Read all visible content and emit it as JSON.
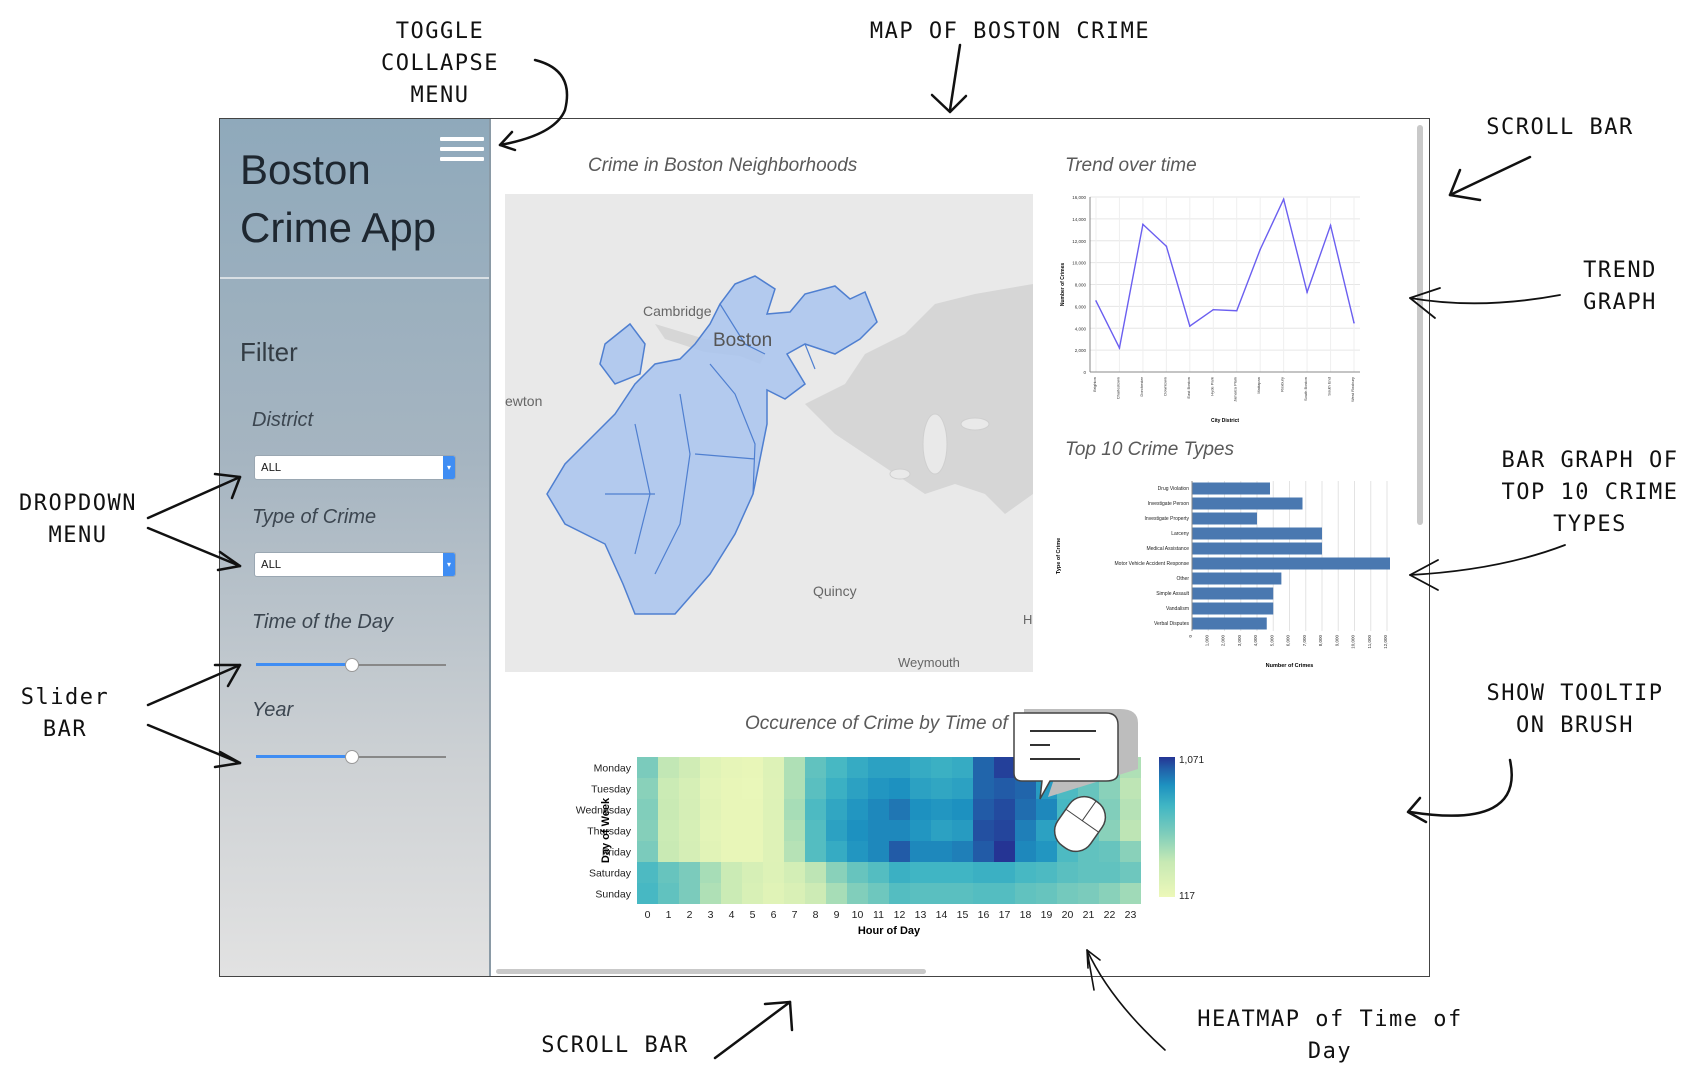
{
  "annotations": {
    "toggle_collapse_menu": "TOGGLE\nCOLLAPSE\nMENU",
    "map_of_boston_crime": "MAP OF BOSTON CRIME",
    "scroll_bar_right": "SCROLL BAR",
    "trend_graph": "TREND\nGRAPH",
    "dropdown_menu": "DROPDOWN\nMENU",
    "bar_graph": "BAR GRAPH OF\nTOP 10 CRIME\nTYPES",
    "slider_bar": "Slider\nBAR",
    "show_tooltip": "SHOW TOOLTIP\nON BRUSH",
    "scroll_bar_bottom": "SCROLL BAR",
    "heatmap": "HEATMAP of Time of\nDay"
  },
  "sidebar": {
    "app_title": "Boston Crime App",
    "filter_title": "Filter",
    "district": {
      "label": "District",
      "value": "ALL"
    },
    "type_of_crime": {
      "label": "Type of Crime",
      "value": "ALL"
    },
    "time_of_day": {
      "label": "Time of the Day",
      "value_fraction": 0.5
    },
    "year": {
      "label": "Year",
      "value_fraction": 0.5
    }
  },
  "map": {
    "title": "Crime in Boston Neighborhoods",
    "labels": {
      "cambridge": "Cambridge",
      "boston": "Boston",
      "newton": "ewton",
      "quincy": "Quincy",
      "weymouth": "Weymouth",
      "edge": "H"
    }
  },
  "trend": {
    "title": "Trend over time",
    "chart_data": {
      "type": "line",
      "xlabel": "City District",
      "ylabel": "Number of Crimes",
      "ylim": [
        0,
        16000
      ],
      "yticks": [
        "0",
        "2,000",
        "4,000",
        "6,000",
        "8,000",
        "10,000",
        "12,000",
        "14,000",
        "16,000"
      ],
      "categories": [
        "Brighton",
        "Charlestown",
        "Dorchester",
        "Downtown",
        "East Boston",
        "Hyde Park",
        "Jamaica Plain",
        "Mattapan",
        "Roxbury",
        "South Boston",
        "South End",
        "West Roxbury"
      ],
      "values": [
        6500,
        2200,
        13500,
        11500,
        4200,
        5700,
        5600,
        11200,
        15800,
        7300,
        13400,
        4500
      ]
    }
  },
  "bars": {
    "title": "Top 10 Crime Types",
    "chart_data": {
      "type": "bar",
      "orientation": "horizontal",
      "xlabel": "Number of Crimes",
      "ylabel": "Type of Crime",
      "xlim": [
        0,
        12000
      ],
      "xticks": [
        "0",
        "1,000",
        "2,000",
        "3,000",
        "4,000",
        "5,000",
        "6,000",
        "7,000",
        "8,000",
        "9,000",
        "10,000",
        "11,000",
        "12,000"
      ],
      "categories": [
        "Drug Violation",
        "Investigate Person",
        "Investigate Property",
        "Larceny",
        "Medical Assistance",
        "Motor Vehicle Accident Response",
        "Other",
        "Simple Assault",
        "Vandalism",
        "Verbal Disputes"
      ],
      "values": [
        4800,
        6800,
        4000,
        8000,
        8000,
        12300,
        5500,
        5000,
        5000,
        4600
      ]
    }
  },
  "heatmap": {
    "title": "Occurence of Crime by Time of the Day",
    "chart_data": {
      "type": "heatmap",
      "xlabel": "Hour of Day",
      "ylabel": "Day of Week",
      "x": [
        "0",
        "1",
        "2",
        "3",
        "4",
        "5",
        "6",
        "7",
        "8",
        "9",
        "10",
        "11",
        "12",
        "13",
        "14",
        "15",
        "16",
        "17",
        "18",
        "19",
        "20",
        "21",
        "22",
        "23"
      ],
      "y": [
        "Monday",
        "Tuesday",
        "Wednesday",
        "Thursday",
        "Friday",
        "Saturday",
        "Sunday"
      ],
      "legend_max": "1,071",
      "legend_min": "117",
      "range": [
        117,
        1071
      ],
      "values": [
        [
          560,
          370,
          300,
          200,
          160,
          150,
          220,
          420,
          640,
          720,
          780,
          820,
          820,
          780,
          760,
          780,
          980,
          1050,
          960,
          880,
          720,
          650,
          560,
          420
        ],
        [
          520,
          330,
          260,
          180,
          150,
          140,
          210,
          420,
          660,
          760,
          820,
          860,
          880,
          820,
          800,
          820,
          980,
          1000,
          980,
          840,
          700,
          620,
          520,
          380
        ],
        [
          540,
          340,
          270,
          190,
          150,
          150,
          220,
          440,
          700,
          800,
          860,
          900,
          940,
          880,
          860,
          880,
          1000,
          1030,
          960,
          900,
          720,
          640,
          540,
          400
        ],
        [
          530,
          330,
          260,
          180,
          150,
          150,
          210,
          420,
          680,
          820,
          880,
          900,
          900,
          860,
          820,
          840,
          1020,
          1040,
          920,
          820,
          700,
          620,
          520,
          380
        ],
        [
          560,
          340,
          270,
          190,
          150,
          150,
          210,
          400,
          680,
          780,
          860,
          900,
          1000,
          900,
          900,
          920,
          1000,
          1071,
          900,
          860,
          700,
          640,
          620,
          520
        ],
        [
          700,
          620,
          560,
          440,
          330,
          260,
          220,
          280,
          380,
          520,
          620,
          680,
          760,
          740,
          740,
          740,
          760,
          760,
          720,
          700,
          660,
          640,
          640,
          600
        ],
        [
          720,
          640,
          560,
          420,
          330,
          250,
          200,
          240,
          320,
          440,
          540,
          600,
          680,
          660,
          660,
          660,
          680,
          680,
          640,
          620,
          580,
          560,
          520,
          460
        ]
      ]
    }
  },
  "colors": {
    "line": "#6b5ff0",
    "bar": "#4a78b0",
    "district_fill": "#a9c4ee",
    "district_stroke": "#4f7fd0",
    "water": "#d6d6d6",
    "land": "#e9e9e9",
    "slider_fill": "#3f8df3"
  }
}
